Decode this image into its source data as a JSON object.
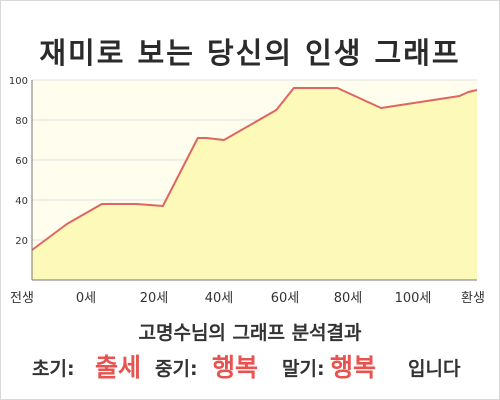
{
  "title": "재미로 보는 당신의 인생 그래프",
  "chart_data": {
    "type": "area",
    "x_labels": [
      "전생",
      "0세",
      "20세",
      "40세",
      "60세",
      "80세",
      "100세",
      "환생"
    ],
    "y_ticks": [
      20,
      40,
      60,
      80,
      100
    ],
    "ylim": [
      0,
      100
    ],
    "grid": true,
    "series": [
      {
        "x": [
          0,
          8,
          16,
          20,
          24,
          30,
          38,
          40,
          44,
          56,
          60,
          62,
          64,
          70,
          80,
          98,
          100,
          102
        ],
        "values": [
          15,
          28,
          38,
          38,
          38,
          37,
          71,
          71,
          70,
          85,
          96,
          96,
          96,
          96,
          86,
          92,
          94,
          95
        ]
      }
    ],
    "colors": {
      "line": "#e0655f",
      "fill": "#fdf9b8",
      "plot_bg": "#fffeee",
      "grid": "#e2e2e2"
    }
  },
  "result": {
    "heading": "고명수님의 그래프 분석결과",
    "early_label": "초기:",
    "early_value": "출세",
    "mid_label": "중기:",
    "mid_value": "행복",
    "late_label": "말기:",
    "late_value": "행복",
    "ending": "입니다"
  }
}
